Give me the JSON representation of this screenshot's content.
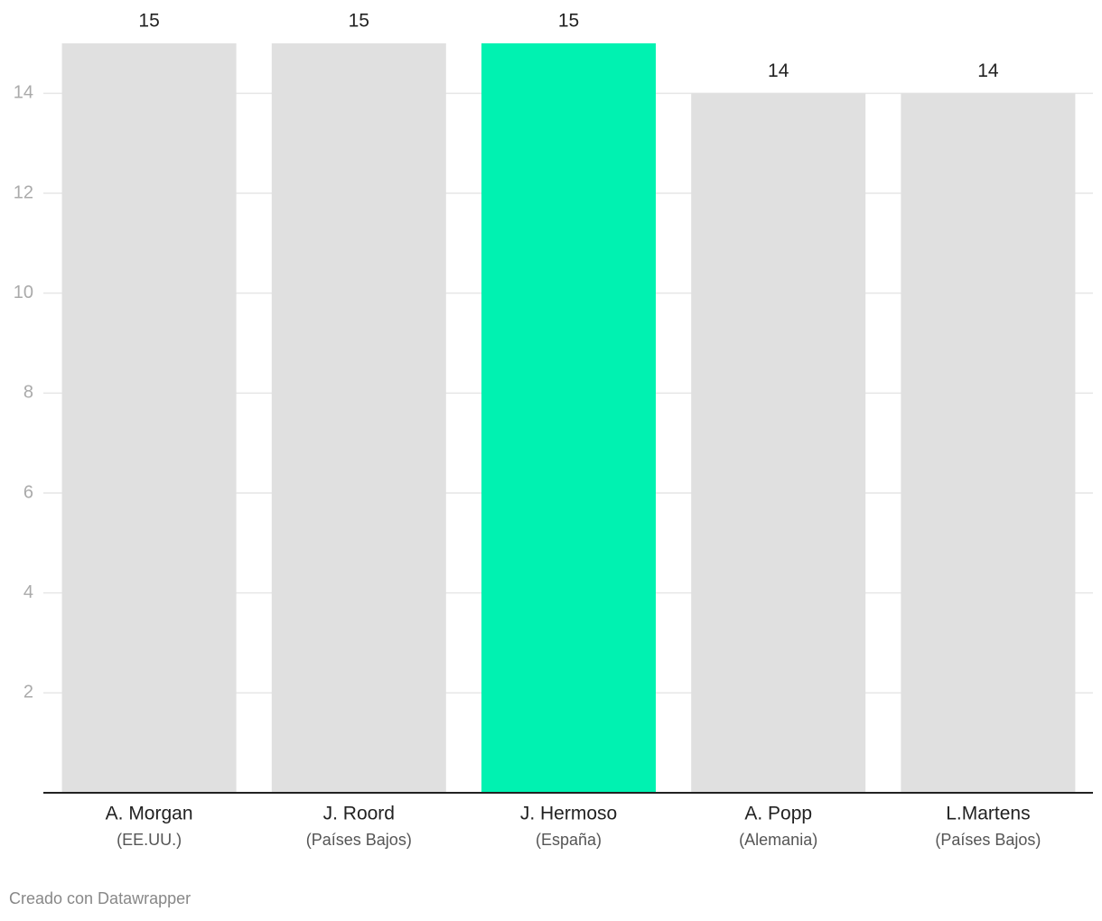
{
  "chart_data": {
    "type": "bar",
    "categories": [
      "A. Morgan",
      "J. Roord",
      "J. Hermoso",
      "A. Popp",
      "L.Martens"
    ],
    "category_subtitles": [
      "(EE.UU.)",
      "(Países Bajos)",
      "(España)",
      "(Alemania)",
      "(Países Bajos)"
    ],
    "values": [
      15,
      15,
      15,
      14,
      14
    ],
    "colors": [
      "#e0e0e0",
      "#e0e0e0",
      "#00f2b1",
      "#e0e0e0",
      "#e0e0e0"
    ],
    "ylim": [
      0,
      15
    ],
    "yticks": [
      2,
      4,
      6,
      8,
      10,
      12,
      14
    ],
    "grid": true,
    "footer": "Creado con Datawrapper"
  }
}
